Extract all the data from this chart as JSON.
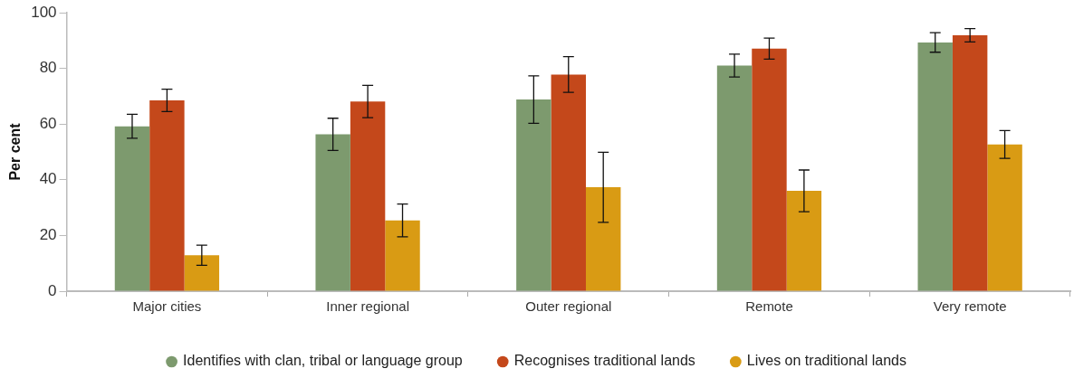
{
  "chart_data": {
    "type": "bar",
    "ylabel": "Per cent",
    "categories": [
      "Major cities",
      "Inner regional",
      "Outer regional",
      "Remote",
      "Very remote"
    ],
    "series": [
      {
        "name": "Identifies with clan, tribal or language group",
        "color": "#7d9a6e",
        "values": [
          59.2,
          56.3,
          68.8,
          81.0,
          89.3
        ],
        "errors": [
          4.3,
          5.8,
          8.5,
          4.1,
          3.5
        ]
      },
      {
        "name": "Recognises traditional lands",
        "color": "#c4481b",
        "values": [
          68.5,
          68.1,
          77.8,
          87.1,
          91.9
        ],
        "errors": [
          4.0,
          5.8,
          6.4,
          3.8,
          2.4
        ]
      },
      {
        "name": "Lives on traditional lands",
        "color": "#d99b14",
        "values": [
          12.9,
          25.4,
          37.3,
          36.0,
          52.7
        ],
        "errors": [
          3.6,
          5.9,
          12.6,
          7.5,
          5.0
        ]
      }
    ],
    "ylim": [
      0,
      100
    ],
    "yticks": [
      0,
      20,
      40,
      60,
      80,
      100
    ],
    "grid": false,
    "legend": "bottom"
  }
}
